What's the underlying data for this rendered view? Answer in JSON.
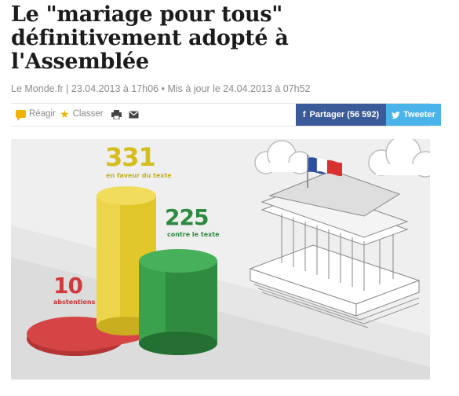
{
  "article": {
    "headline_lines": [
      "Le \"mariage pour tous\"",
      "définitivement adopté à",
      "l'Assemblée"
    ],
    "byline": "Le Monde.fr | 23.04.2013 à 17h06 • Mis à jour le 24.04.2013 à 07h52"
  },
  "toolbar": {
    "react_label": "Réagir",
    "classer_label": "Classer",
    "facebook_label": "Partager (56 592)",
    "facebook_glyph": "f",
    "twitter_label": "Tweeter"
  },
  "infographic": {
    "pour": {
      "value": "331",
      "label": "en faveur du texte",
      "color": "#e2c72a"
    },
    "contre": {
      "value": "225",
      "label": "contre le texte",
      "color": "#2e8b3f"
    },
    "abstentions": {
      "value": "10",
      "label": "abstentions",
      "color": "#d64545"
    }
  },
  "colors": {
    "facebook": "#3b5a99",
    "twitter": "#4ab4ea",
    "accent": "#f0b400"
  }
}
